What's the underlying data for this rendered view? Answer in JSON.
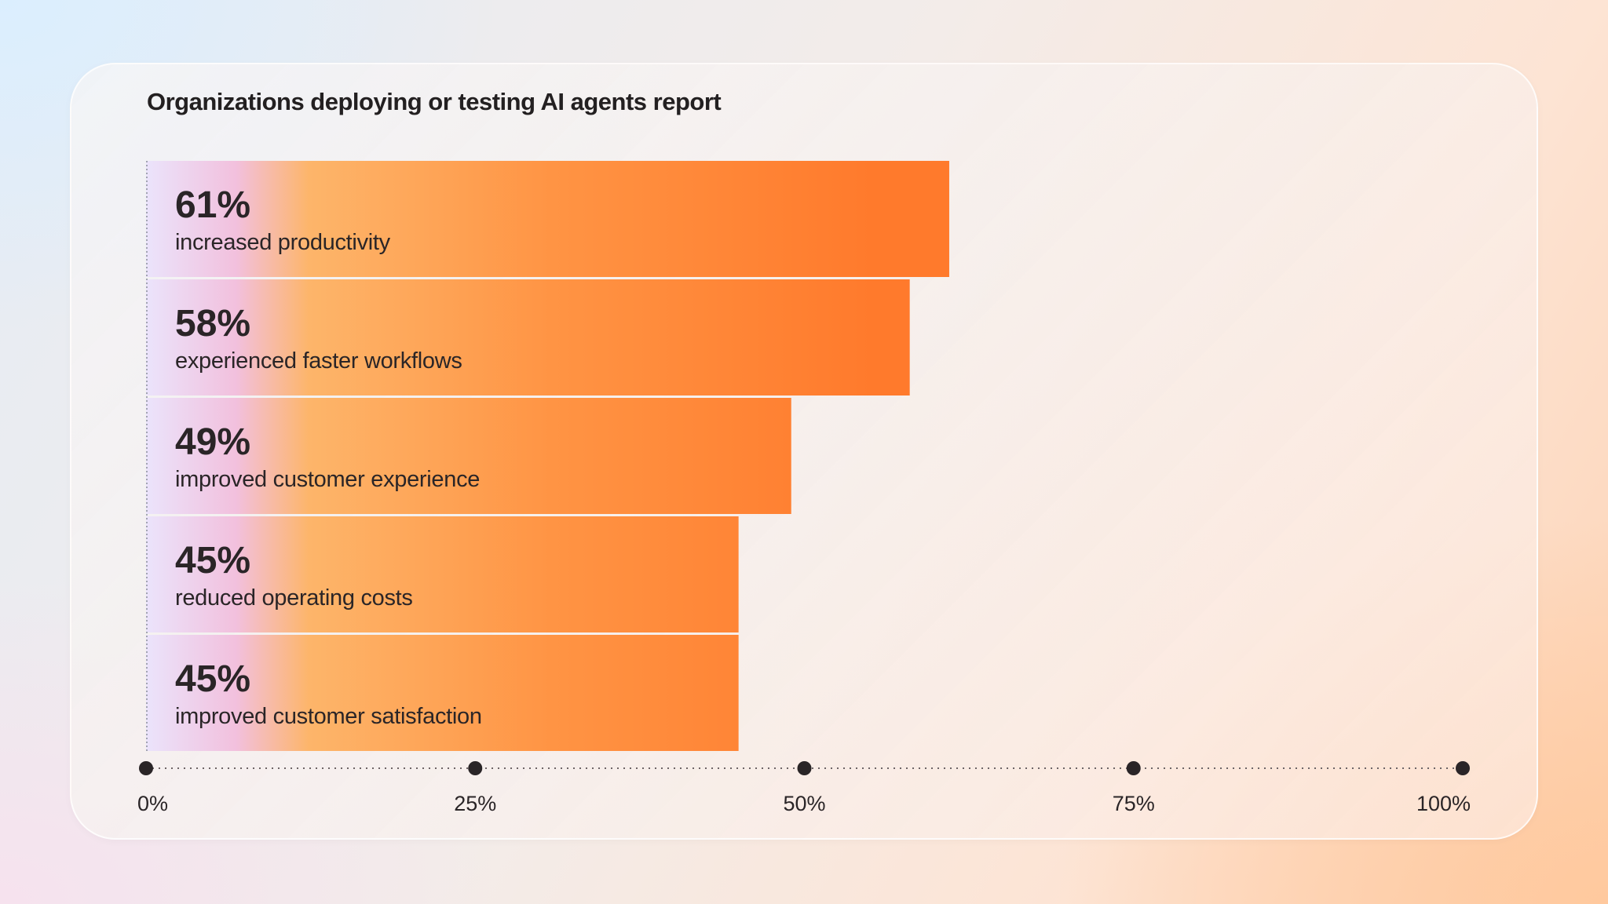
{
  "chart_data": {
    "type": "bar",
    "orientation": "horizontal",
    "title": "Organizations deploying or testing AI agents report",
    "categories": [
      "increased productivity",
      "experienced faster workflows",
      "improved customer experience",
      "reduced operating costs",
      "improved customer satisfaction"
    ],
    "values": [
      61,
      58,
      49,
      45,
      45
    ],
    "value_labels": [
      "61%",
      "58%",
      "49%",
      "45%",
      "45%"
    ],
    "xlim": [
      0,
      100
    ],
    "x_ticks": [
      0,
      25,
      50,
      75,
      100
    ],
    "x_tick_labels": [
      "0%",
      "25%",
      "50%",
      "75%",
      "100%"
    ],
    "grid": false,
    "legend": "none",
    "colors": {
      "bar_start": "#ebe3fb",
      "bar_mid1": "#f2c0dd",
      "bar_mid2": "#fdb56a",
      "bar_mid3": "#ff9444",
      "bar_end": "#ff7a2c",
      "text": "#2a2527",
      "axis": "#2a2527"
    }
  }
}
